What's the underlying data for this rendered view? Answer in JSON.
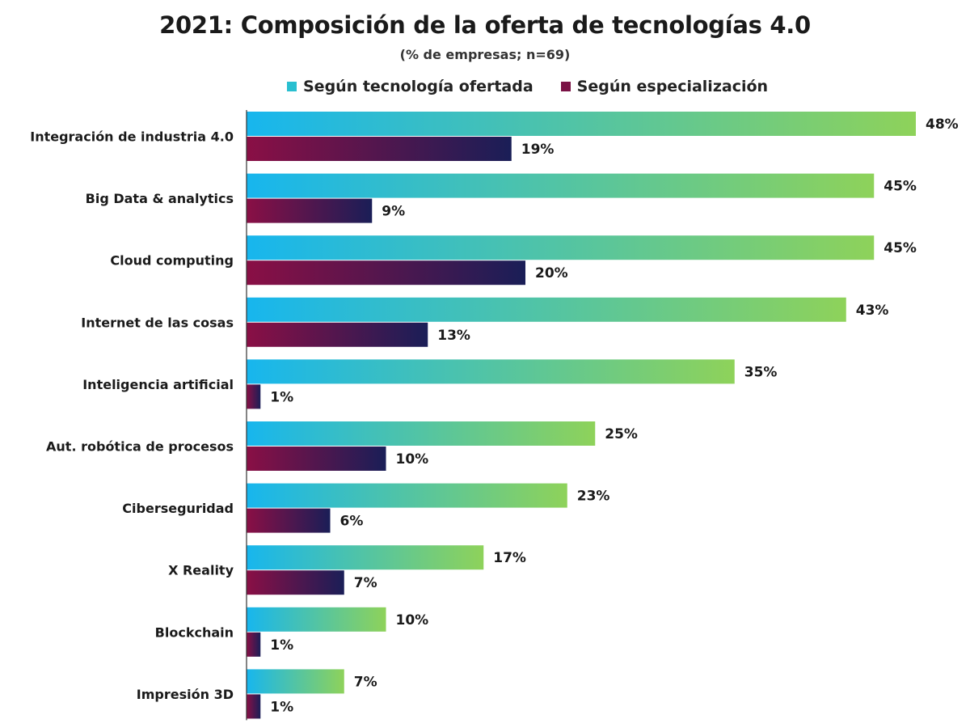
{
  "colors": {
    "tecnologia_start": "#17b6ee",
    "tecnologia_end": "#8ed25a",
    "especializacion_start": "#8a0f45",
    "especializacion_end": "#1a1e57",
    "legend_tecnologia": "#29bfd0",
    "legend_especializacion": "#7a1245",
    "axis": "#333333"
  },
  "chart_data": {
    "type": "bar",
    "orientation": "horizontal",
    "title": "2021: Composición de la oferta de tecnologías 4.0",
    "subtitle": "(% de empresas; n=69)",
    "legend_position": "top",
    "grid": false,
    "xlim": [
      0,
      50
    ],
    "categories": [
      "Integración de industria 4.0",
      "Big Data & analytics",
      "Cloud computing",
      "Internet de las cosas",
      "Inteligencia artificial",
      "Aut. robótica de procesos",
      "Ciberseguridad",
      "X Reality",
      "Blockchain",
      "Impresión 3D"
    ],
    "series": [
      {
        "name": "Según tecnología ofertada",
        "values": [
          48,
          45,
          45,
          43,
          35,
          25,
          23,
          17,
          10,
          7
        ],
        "labels": [
          "48%",
          "45%",
          "45%",
          "43%",
          "35%",
          "25%",
          "23%",
          "17%",
          "10%",
          "7%"
        ]
      },
      {
        "name": "Según especialización",
        "values": [
          19,
          9,
          20,
          13,
          1,
          10,
          6,
          7,
          1,
          1
        ],
        "labels": [
          "19%",
          "9%",
          "20%",
          "13%",
          "1%",
          "10%",
          "6%",
          "7%",
          "1%",
          "1%"
        ]
      }
    ]
  }
}
